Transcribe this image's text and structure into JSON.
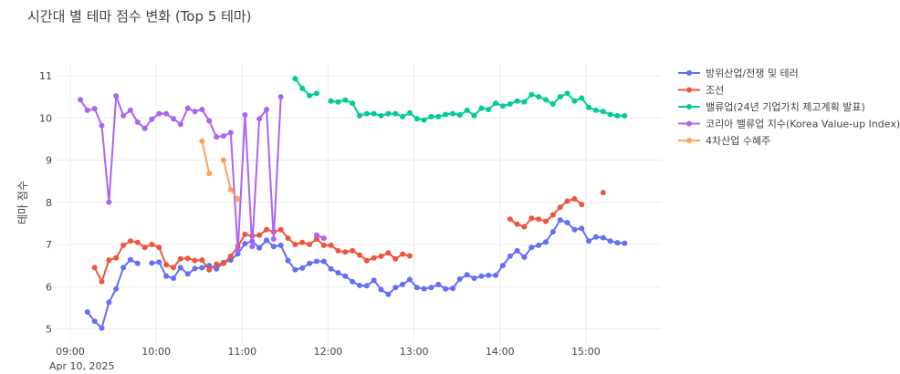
{
  "chart_data": {
    "type": "line",
    "title": "시간대 별 테마 점수 변화 (Top 5 테마)",
    "xlabel": "",
    "ylabel": "테마 점수",
    "date_label": "Apr 10, 2025",
    "x_range": [
      "09:00",
      "15:30"
    ],
    "ylim": [
      4.7,
      11.3
    ],
    "x_ticks": [
      "09:00",
      "10:00",
      "11:00",
      "12:00",
      "13:00",
      "14:00",
      "15:00"
    ],
    "y_ticks": [
      5,
      6,
      7,
      8,
      9,
      10,
      11
    ],
    "grid": true,
    "legend_position": "right",
    "series": [
      {
        "name": "방위산업/전쟁 및 테러",
        "color": "#636efa",
        "points": [
          [
            "09:12",
            5.4
          ],
          [
            "09:17",
            5.18
          ],
          [
            "09:22",
            5.02
          ],
          [
            "09:27",
            5.63
          ],
          [
            "09:32",
            5.95
          ],
          [
            "09:37",
            6.45
          ],
          [
            "09:42",
            6.64
          ],
          [
            "09:47",
            6.55
          ],
          null,
          [
            "09:57",
            6.56
          ],
          [
            "10:02",
            6.58
          ],
          [
            "10:07",
            6.25
          ],
          [
            "10:12",
            6.2
          ],
          [
            "10:17",
            6.45
          ],
          [
            "10:22",
            6.3
          ],
          [
            "10:27",
            6.43
          ],
          [
            "10:32",
            6.45
          ],
          [
            "10:37",
            6.5
          ],
          [
            "10:42",
            6.42
          ],
          [
            "10:47",
            6.57
          ],
          [
            "10:52",
            6.63
          ],
          [
            "10:57",
            6.78
          ],
          [
            "11:02",
            7.02
          ],
          [
            "11:07",
            7.08
          ],
          [
            "11:12",
            6.92
          ],
          [
            "11:17",
            7.1
          ],
          [
            "11:22",
            6.95
          ],
          [
            "11:27",
            6.98
          ],
          [
            "11:32",
            6.62
          ],
          [
            "11:37",
            6.4
          ],
          [
            "11:42",
            6.44
          ],
          [
            "11:47",
            6.55
          ],
          [
            "11:52",
            6.6
          ],
          [
            "11:57",
            6.6
          ],
          [
            "12:02",
            6.42
          ],
          [
            "12:07",
            6.33
          ],
          [
            "12:12",
            6.25
          ],
          [
            "12:17",
            6.12
          ],
          [
            "12:22",
            6.03
          ],
          [
            "12:27",
            6.02
          ],
          [
            "12:32",
            6.15
          ],
          [
            "12:37",
            5.93
          ],
          [
            "12:42",
            5.82
          ],
          [
            "12:47",
            5.98
          ],
          [
            "12:52",
            6.05
          ],
          [
            "12:57",
            6.17
          ],
          [
            "13:02",
            5.98
          ],
          [
            "13:07",
            5.95
          ],
          [
            "13:12",
            5.98
          ],
          [
            "13:17",
            6.05
          ],
          [
            "13:22",
            5.95
          ],
          [
            "13:27",
            5.96
          ],
          [
            "13:32",
            6.18
          ],
          [
            "13:37",
            6.28
          ],
          [
            "13:42",
            6.2
          ],
          [
            "13:47",
            6.25
          ],
          [
            "13:52",
            6.27
          ],
          [
            "13:57",
            6.27
          ],
          [
            "14:02",
            6.5
          ],
          [
            "14:07",
            6.72
          ],
          [
            "14:12",
            6.85
          ],
          [
            "14:17",
            6.7
          ],
          [
            "14:22",
            6.93
          ],
          [
            "14:27",
            6.98
          ],
          [
            "14:32",
            7.06
          ],
          [
            "14:37",
            7.3
          ],
          [
            "14:42",
            7.58
          ],
          [
            "14:47",
            7.52
          ],
          [
            "14:52",
            7.35
          ],
          [
            "14:57",
            7.38
          ],
          [
            "15:02",
            7.08
          ],
          [
            "15:07",
            7.18
          ],
          [
            "15:12",
            7.16
          ],
          [
            "15:17",
            7.08
          ],
          [
            "15:22",
            7.04
          ],
          [
            "15:27",
            7.03
          ]
        ]
      },
      {
        "name": "조선",
        "color": "#ef553b",
        "points": [
          [
            "09:17",
            6.45
          ],
          [
            "09:22",
            6.12
          ],
          [
            "09:27",
            6.63
          ],
          [
            "09:32",
            6.68
          ],
          [
            "09:37",
            6.98
          ],
          [
            "09:42",
            7.08
          ],
          [
            "09:47",
            7.05
          ],
          [
            "09:52",
            6.93
          ],
          [
            "09:57",
            7.0
          ],
          [
            "10:02",
            6.93
          ],
          [
            "10:07",
            6.52
          ],
          [
            "10:12",
            6.45
          ],
          [
            "10:17",
            6.66
          ],
          [
            "10:22",
            6.67
          ],
          [
            "10:27",
            6.62
          ],
          [
            "10:32",
            6.63
          ],
          [
            "10:37",
            6.4
          ],
          [
            "10:42",
            6.53
          ],
          [
            "10:47",
            6.55
          ],
          [
            "10:52",
            6.72
          ],
          [
            "10:57",
            6.95
          ],
          [
            "11:02",
            7.24
          ],
          [
            "11:07",
            7.2
          ],
          [
            "11:12",
            7.22
          ],
          [
            "11:17",
            7.35
          ],
          [
            "11:22",
            7.3
          ],
          [
            "11:27",
            7.35
          ],
          [
            "11:32",
            7.15
          ],
          [
            "11:37",
            7.0
          ],
          [
            "11:42",
            7.05
          ],
          [
            "11:47",
            7.0
          ],
          [
            "11:52",
            7.13
          ],
          [
            "11:57",
            6.98
          ],
          [
            "12:02",
            6.98
          ],
          [
            "12:07",
            6.85
          ],
          [
            "12:12",
            6.82
          ],
          [
            "12:17",
            6.85
          ],
          [
            "12:22",
            6.75
          ],
          [
            "12:27",
            6.62
          ],
          [
            "12:32",
            6.68
          ],
          [
            "12:37",
            6.72
          ],
          [
            "12:42",
            6.8
          ],
          [
            "12:47",
            6.66
          ],
          [
            "12:52",
            6.77
          ],
          [
            "12:57",
            6.73
          ],
          null,
          [
            "14:07",
            7.6
          ],
          [
            "14:12",
            7.48
          ],
          [
            "14:17",
            7.42
          ],
          [
            "14:22",
            7.62
          ],
          [
            "14:27",
            7.6
          ],
          [
            "14:32",
            7.55
          ],
          [
            "14:37",
            7.7
          ],
          [
            "14:42",
            7.88
          ],
          [
            "14:47",
            8.03
          ],
          [
            "14:52",
            8.08
          ],
          [
            "14:57",
            7.95
          ],
          null,
          [
            "15:12",
            8.23
          ]
        ]
      },
      {
        "name": "밸류업(24년 기업가치 제고계획 발표)",
        "color": "#00cc96",
        "points": [
          [
            "11:37",
            10.93
          ],
          [
            "11:42",
            10.7
          ],
          [
            "11:47",
            10.53
          ],
          [
            "11:52",
            10.58
          ],
          null,
          [
            "12:02",
            10.4
          ],
          [
            "12:07",
            10.38
          ],
          [
            "12:12",
            10.42
          ],
          [
            "12:17",
            10.35
          ],
          [
            "12:22",
            10.05
          ],
          [
            "12:27",
            10.1
          ],
          [
            "12:32",
            10.1
          ],
          [
            "12:37",
            10.05
          ],
          [
            "12:42",
            10.1
          ],
          [
            "12:47",
            10.1
          ],
          [
            "12:52",
            10.03
          ],
          [
            "12:57",
            10.12
          ],
          [
            "13:02",
            9.98
          ],
          [
            "13:07",
            9.95
          ],
          [
            "13:12",
            10.03
          ],
          [
            "13:17",
            10.03
          ],
          [
            "13:22",
            10.08
          ],
          [
            "13:27",
            10.1
          ],
          [
            "13:32",
            10.07
          ],
          [
            "13:37",
            10.18
          ],
          [
            "13:42",
            10.05
          ],
          [
            "13:47",
            10.23
          ],
          [
            "13:52",
            10.2
          ],
          [
            "13:57",
            10.35
          ],
          [
            "14:02",
            10.28
          ],
          [
            "14:07",
            10.33
          ],
          [
            "14:12",
            10.4
          ],
          [
            "14:17",
            10.38
          ],
          [
            "14:22",
            10.55
          ],
          [
            "14:27",
            10.5
          ],
          [
            "14:32",
            10.43
          ],
          [
            "14:37",
            10.33
          ],
          [
            "14:42",
            10.5
          ],
          [
            "14:47",
            10.58
          ],
          [
            "14:52",
            10.4
          ],
          [
            "14:57",
            10.47
          ],
          [
            "15:02",
            10.25
          ],
          [
            "15:07",
            10.18
          ],
          [
            "15:12",
            10.15
          ],
          [
            "15:17",
            10.08
          ],
          [
            "15:22",
            10.05
          ],
          [
            "15:27",
            10.05
          ]
        ]
      },
      {
        "name": "코리아 밸류업 지수(Korea Value-up Index)",
        "color": "#ab63fa",
        "points": [
          [
            "09:07",
            10.43
          ],
          [
            "09:12",
            10.18
          ],
          [
            "09:17",
            10.22
          ],
          [
            "09:22",
            9.82
          ],
          [
            "09:27",
            8.0
          ],
          [
            "09:32",
            10.52
          ],
          [
            "09:37",
            10.05
          ],
          [
            "09:42",
            10.18
          ],
          [
            "09:47",
            9.9
          ],
          [
            "09:52",
            9.75
          ],
          [
            "09:57",
            9.97
          ],
          [
            "10:02",
            10.1
          ],
          [
            "10:07",
            10.1
          ],
          [
            "10:12",
            9.98
          ],
          [
            "10:17",
            9.85
          ],
          [
            "10:22",
            10.23
          ],
          [
            "10:27",
            10.15
          ],
          [
            "10:32",
            10.2
          ],
          [
            "10:37",
            9.93
          ],
          [
            "10:42",
            9.55
          ],
          [
            "10:47",
            9.57
          ],
          [
            "10:52",
            9.65
          ],
          [
            "10:57",
            6.85
          ],
          [
            "11:02",
            10.07
          ],
          [
            "11:07",
            6.95
          ],
          [
            "11:12",
            9.98
          ],
          [
            "11:17",
            10.2
          ],
          [
            "11:22",
            7.13
          ],
          [
            "11:27",
            10.5
          ],
          null,
          [
            "11:52",
            7.22
          ],
          [
            "11:57",
            7.15
          ]
        ]
      },
      {
        "name": "4차산업 수혜주",
        "color": "#ffa15a",
        "points": [
          [
            "10:32",
            9.45
          ],
          [
            "10:37",
            8.68
          ],
          null,
          [
            "10:47",
            9.0
          ],
          [
            "10:52",
            8.3
          ],
          [
            "10:57",
            8.08
          ]
        ]
      }
    ]
  }
}
